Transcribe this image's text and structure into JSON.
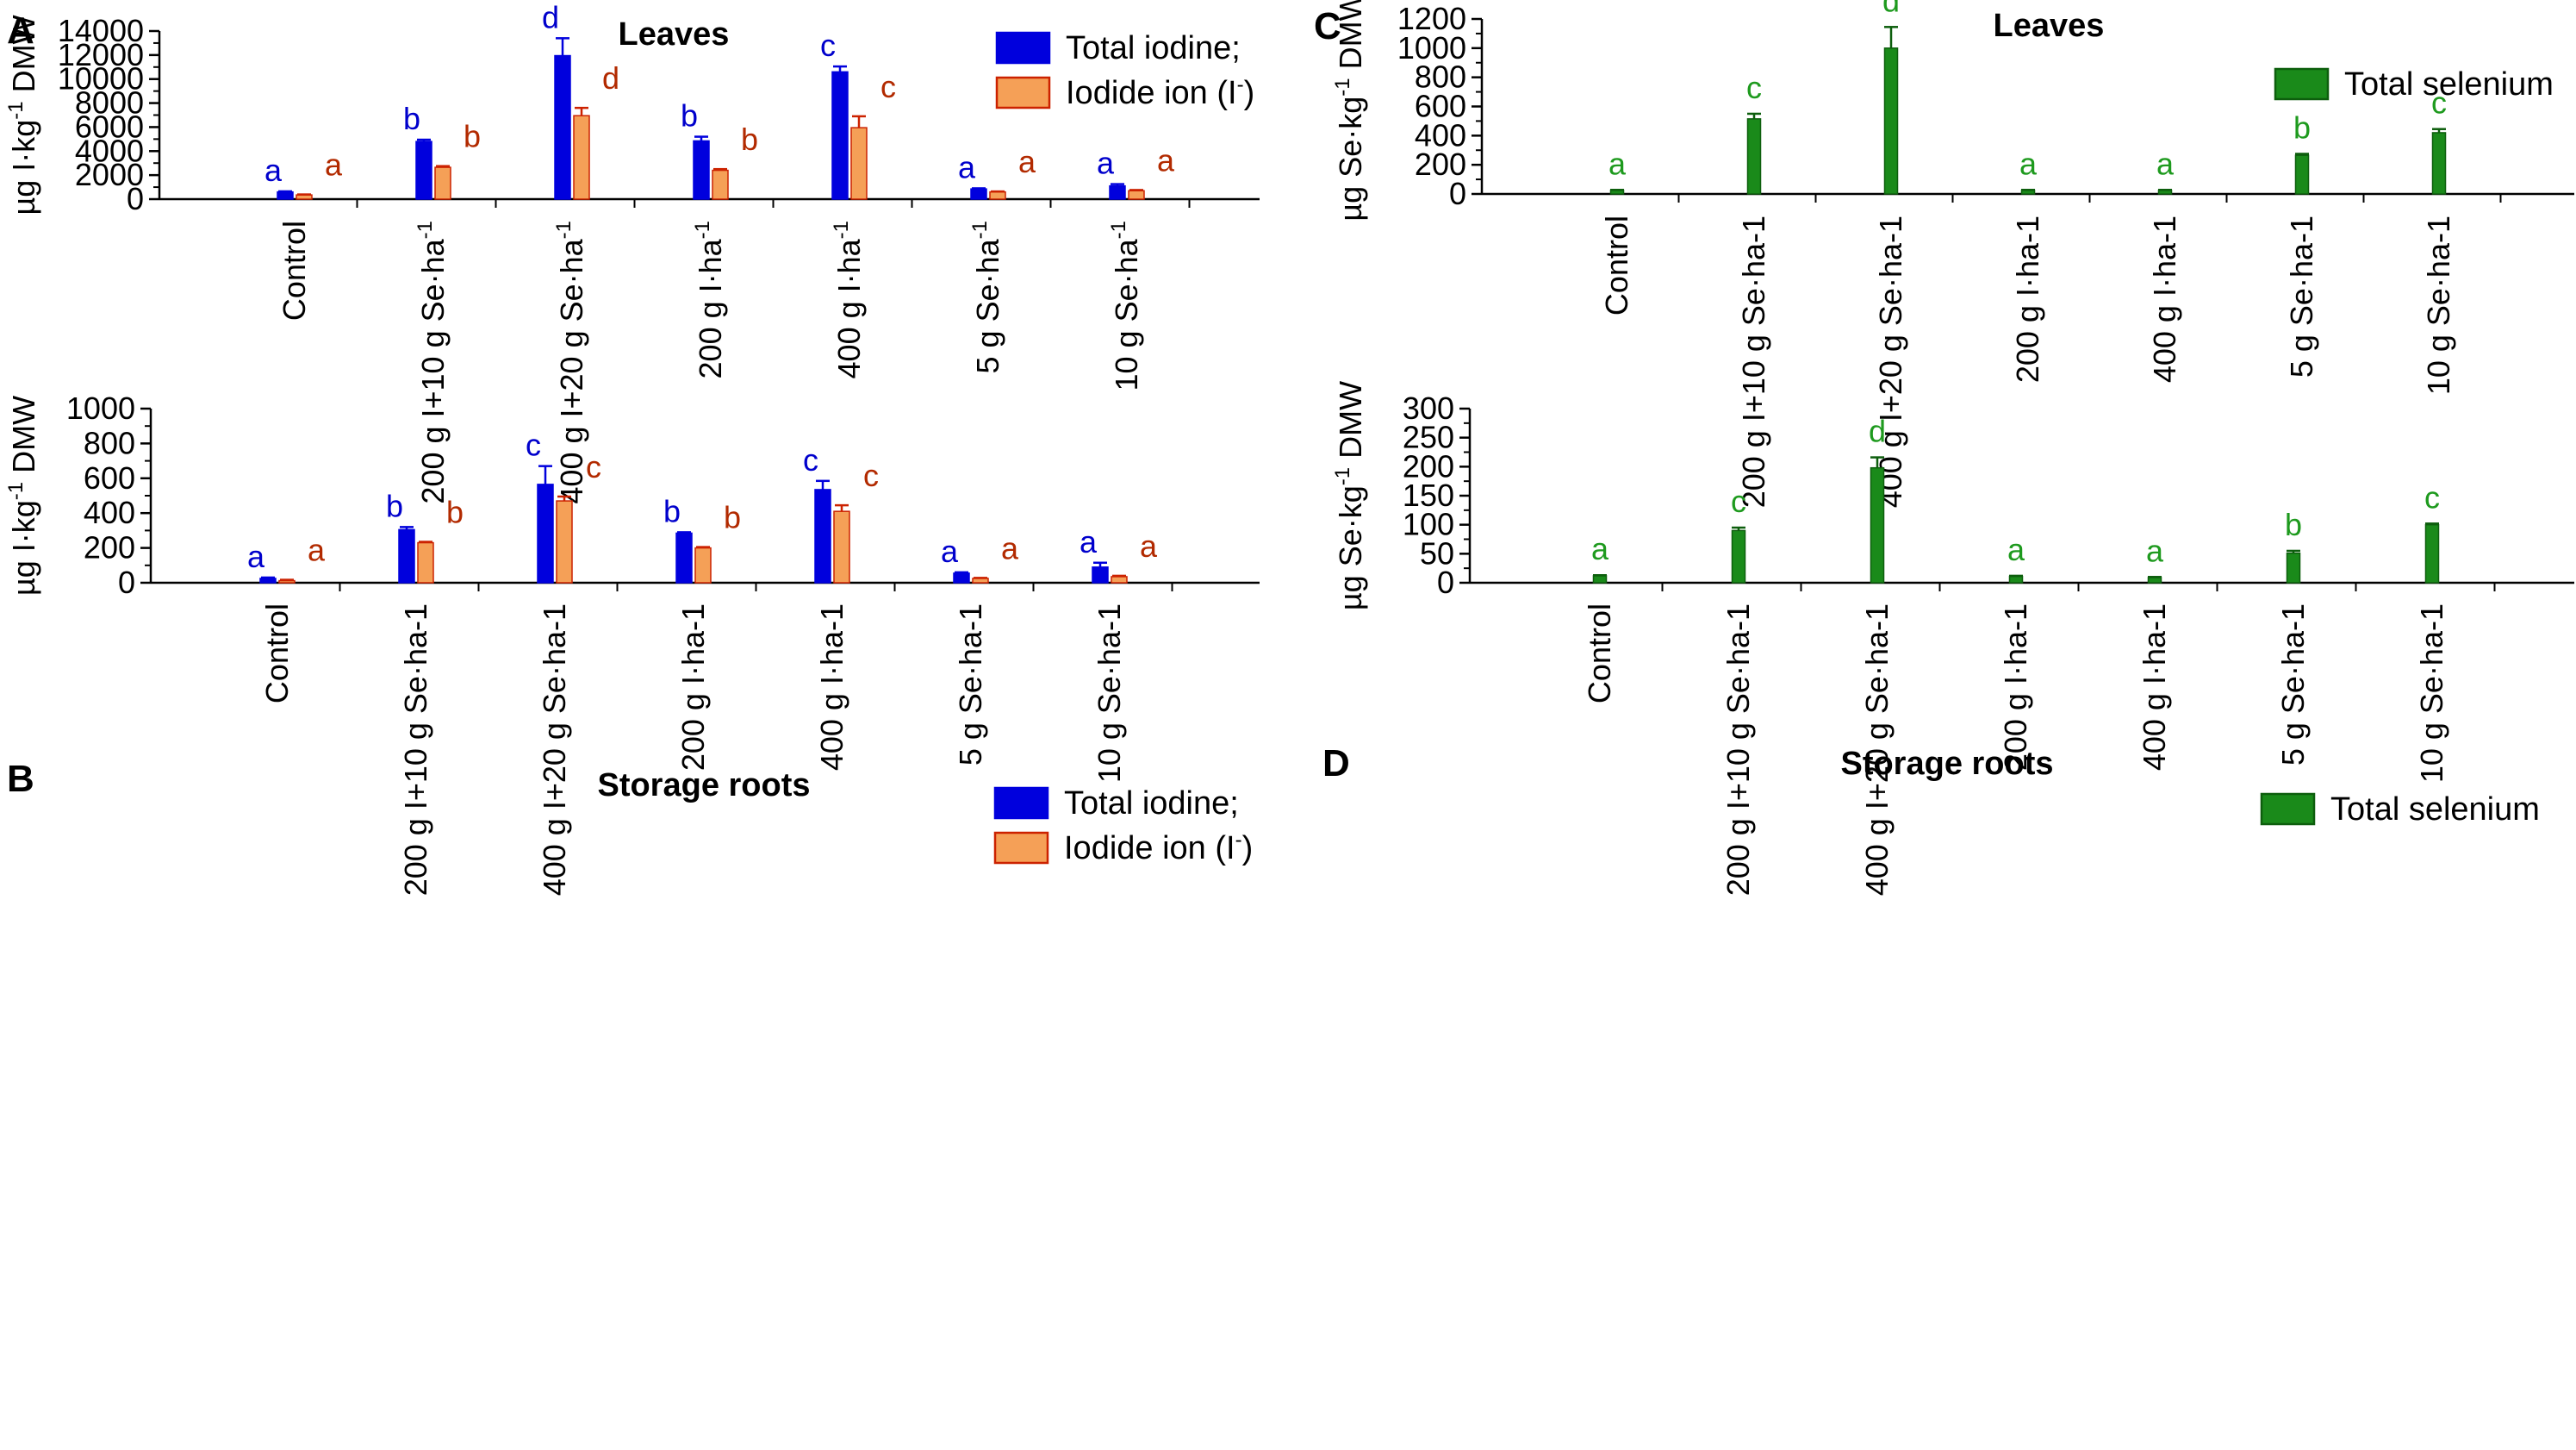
{
  "chart_data": [
    {
      "panel": "A",
      "type": "bar",
      "title": "Leaves",
      "ylabel": {
        "prefix": "µg I·kg",
        "sup": "-1",
        "suffix": " DMW"
      },
      "ylim": [
        0,
        14000
      ],
      "yticks": [
        0,
        2000,
        4000,
        6000,
        8000,
        10000,
        12000,
        14000
      ],
      "categories": [
        "Control",
        "200 g I+10 g Se·ha",
        "400 g I+20 g Se·ha",
        "200 g I·ha",
        "400 g I·ha",
        "5 g Se·ha",
        "10 g Se·ha"
      ],
      "category_sup": "-1",
      "series": [
        {
          "name": "Total iodine;",
          "color": "#0000dd",
          "error_color": "#0000dd",
          "letter_color": "#0000cc",
          "values": [
            600,
            4800,
            11950,
            4850,
            10600,
            850,
            1100
          ],
          "errors": [
            50,
            150,
            1450,
            350,
            450,
            50,
            150
          ],
          "letters": [
            "a",
            "b",
            "d",
            "b",
            "c",
            "a",
            "a"
          ]
        },
        {
          "name": "Iodide ion (I",
          "name_sup": "-",
          "name_suffix": ")",
          "color": "#f5a057",
          "error_color": "#cc2200",
          "letter_color": "#b22a00",
          "values": [
            350,
            2650,
            6950,
            2400,
            5950,
            600,
            700
          ],
          "errors": [
            40,
            100,
            650,
            100,
            950,
            40,
            60
          ],
          "letters": [
            "a",
            "b",
            "d",
            "b",
            "c",
            "a",
            "a"
          ]
        }
      ],
      "legend_position": "top-right"
    },
    {
      "panel": "B",
      "type": "bar",
      "title": "Storage roots",
      "ylabel": {
        "prefix": "µg I·kg",
        "sup": "-1",
        "suffix": " DMW"
      },
      "ylim": [
        0,
        1000
      ],
      "yticks": [
        0,
        200,
        400,
        600,
        800,
        1000
      ],
      "categories": [
        "Control",
        "200 g I+10 g Se·ha-1",
        "400 g I+20 g Se·ha-1",
        "200 g I·ha-1",
        "400 g I·ha-1",
        "5 g Se·ha-1",
        "10 g Se·ha-1"
      ],
      "series": [
        {
          "name": "Total iodine;",
          "color": "#0000dd",
          "error_color": "#0000dd",
          "letter_color": "#0000cc",
          "values": [
            25,
            305,
            565,
            285,
            535,
            55,
            90
          ],
          "errors": [
            5,
            15,
            105,
            5,
            50,
            5,
            25
          ],
          "letters": [
            "a",
            "b",
            "c",
            "b",
            "c",
            "a",
            "a"
          ]
        },
        {
          "name": "Iodide ion (I",
          "name_sup": "-",
          "name_suffix": ")",
          "color": "#f5a057",
          "error_color": "#cc2200",
          "letter_color": "#b22a00",
          "values": [
            12,
            230,
            470,
            200,
            410,
            25,
            35
          ],
          "errors": [
            5,
            5,
            25,
            5,
            35,
            3,
            5
          ],
          "letters": [
            "a",
            "b",
            "c",
            "b",
            "c",
            "a",
            "a"
          ]
        }
      ],
      "legend_position": "top-right"
    },
    {
      "panel": "C",
      "type": "bar",
      "title": "Leaves",
      "ylabel": {
        "prefix": "µg Se·kg",
        "sup": "-1",
        "suffix": " DMW"
      },
      "ylim": [
        0,
        1200
      ],
      "yticks": [
        0,
        200,
        400,
        600,
        800,
        1000,
        1200
      ],
      "categories": [
        "Control",
        "200 g I+10 g Se·ha-1",
        "400 g I+20 g Se·ha-1",
        "200 g I·ha-1",
        "400 g I·ha-1",
        "5 g Se·ha-1",
        "10 g Se·ha-1"
      ],
      "series": [
        {
          "name": "Total selenium",
          "color": "#1a8a1a",
          "error_color": "#0d5e0d",
          "letter_color": "#1e9a1e",
          "values": [
            25,
            515,
            1000,
            25,
            25,
            265,
            420
          ],
          "errors": [
            3,
            35,
            145,
            3,
            3,
            10,
            25
          ],
          "letters": [
            "a",
            "c",
            "d",
            "a",
            "a",
            "b",
            "c"
          ]
        }
      ],
      "legend_position": "top-right"
    },
    {
      "panel": "D",
      "type": "bar",
      "title": "Storage roots",
      "ylabel": {
        "prefix": "µg Se·kg",
        "sup": "-1",
        "suffix": " DMW"
      },
      "ylim": [
        0,
        300
      ],
      "yticks": [
        0,
        50,
        100,
        150,
        200,
        250,
        300
      ],
      "categories": [
        "Control",
        "200 g I+10 g Se·ha-1",
        "400 g I+20 g Se·ha-1",
        "200 g I·ha-1",
        "400 g I·ha-1",
        "5 g Se·ha-1",
        "10 g Se·ha-1"
      ],
      "series": [
        {
          "name": "Total selenium",
          "color": "#1a8a1a",
          "error_color": "#0d5e0d",
          "letter_color": "#1e9a1e",
          "values": [
            12,
            90,
            198,
            11,
            9,
            51,
            100
          ],
          "errors": [
            1,
            5,
            18,
            1,
            1,
            4,
            2
          ],
          "letters": [
            "a",
            "c",
            "d",
            "a",
            "a",
            "b",
            "c"
          ]
        }
      ],
      "legend_position": "top-right"
    }
  ]
}
